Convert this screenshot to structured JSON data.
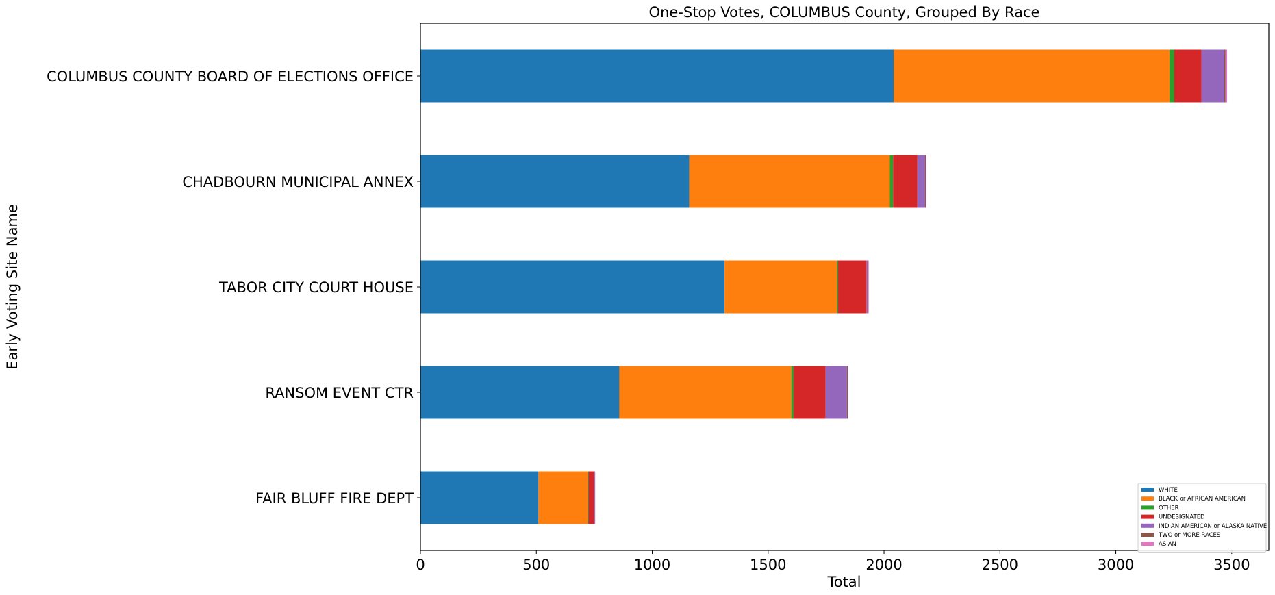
{
  "chart_data": {
    "type": "bar",
    "orientation": "horizontal",
    "stacked": true,
    "title": "One-Stop Votes, COLUMBUS County, Grouped By Race",
    "xlabel": "Total",
    "ylabel": "Early Voting Site Name",
    "xlim": [
      0,
      3660
    ],
    "xticks": [
      0,
      500,
      1000,
      1500,
      2000,
      2500,
      3000,
      3500
    ],
    "grid": false,
    "legend_position": "lower-right",
    "categories": [
      "COLUMBUS COUNTY BOARD OF ELECTIONS OFFICE",
      "CHADBOURN MUNICIPAL ANNEX",
      "TABOR CITY COURT HOUSE",
      "RANSOM EVENT CTR",
      "FAIR BLUFF FIRE DEPT"
    ],
    "series": [
      {
        "name": "WHITE",
        "color": "#1f77b4",
        "values": [
          2042,
          1160,
          1312,
          858,
          509
        ]
      },
      {
        "name": "BLACK or AFRICAN AMERICAN",
        "color": "#ff7f0e",
        "values": [
          1190,
          865,
          485,
          742,
          212
        ]
      },
      {
        "name": "OTHER",
        "color": "#2ca02c",
        "values": [
          20,
          14,
          5,
          10,
          3
        ]
      },
      {
        "name": "UNDESIGNATED",
        "color": "#d62728",
        "values": [
          118,
          105,
          122,
          138,
          25
        ]
      },
      {
        "name": "INDIAN AMERICAN or ALASKA NATIVE",
        "color": "#9467bd",
        "values": [
          98,
          33,
          5,
          92,
          3
        ]
      },
      {
        "name": "TWO or MORE RACES",
        "color": "#8c564b",
        "values": [
          5,
          3,
          2,
          4,
          1
        ]
      },
      {
        "name": "ASIAN",
        "color": "#e377c2",
        "values": [
          7,
          2,
          3,
          1,
          1
        ]
      }
    ]
  }
}
